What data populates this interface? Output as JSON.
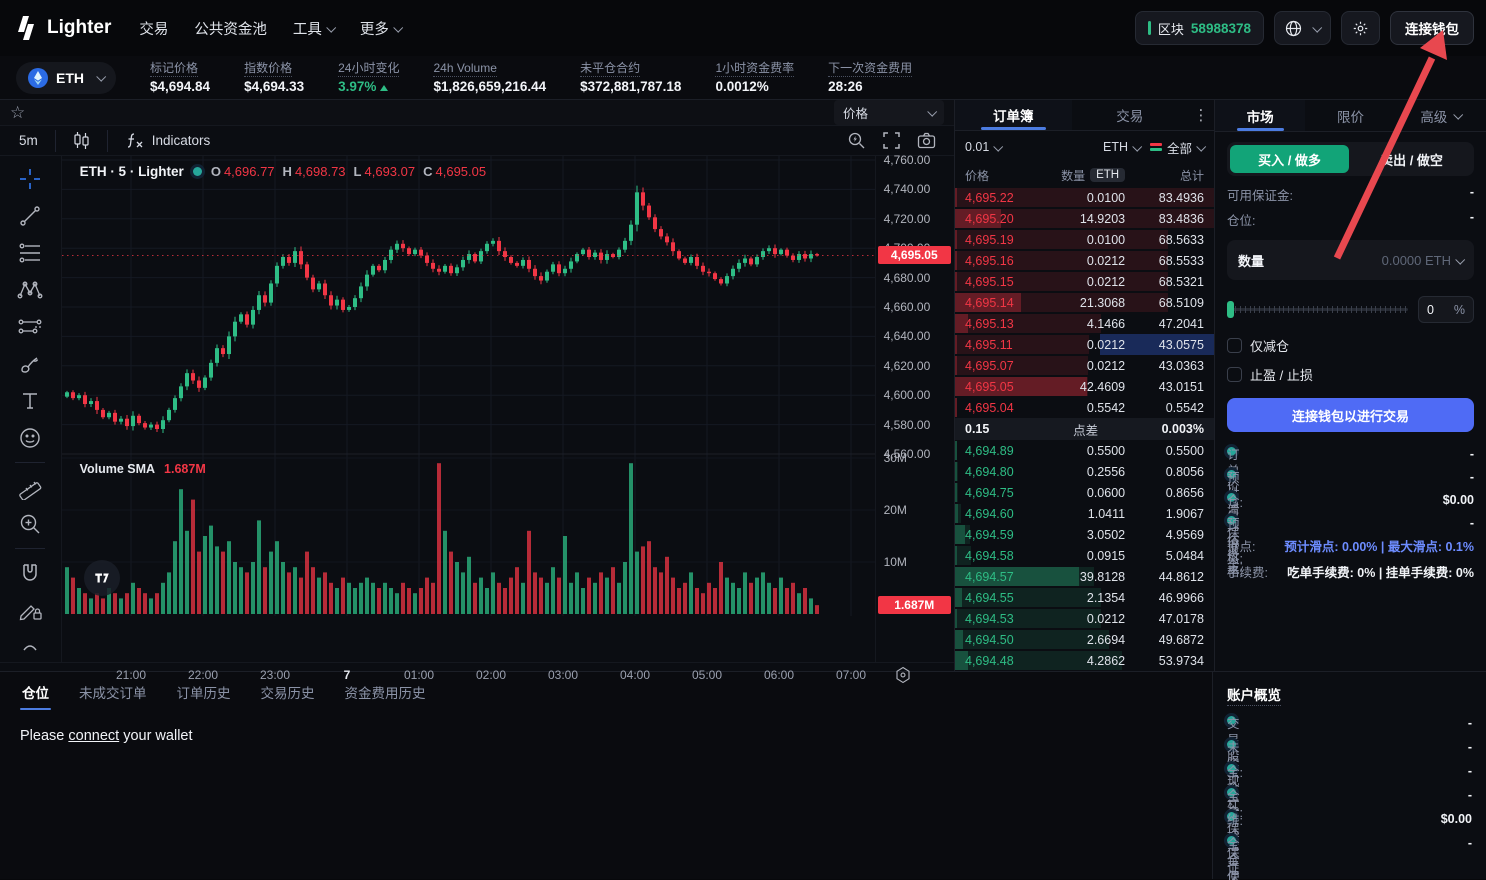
{
  "colors": {
    "red": "#f23645",
    "green": "#2ebd85",
    "blue": "#4c7ce0",
    "buy_green": "#12a478",
    "connect_blue": "#4f6bf5",
    "link_blue": "#6d8cff"
  },
  "nav": {
    "brand": "Lighter",
    "items": [
      {
        "label": "交易",
        "chevron": false
      },
      {
        "label": "公共资金池",
        "chevron": false
      },
      {
        "label": "工具",
        "chevron": true
      },
      {
        "label": "更多",
        "chevron": true
      }
    ],
    "block_label": "区块",
    "block_number": "58988378",
    "wallet_button": "连接钱包"
  },
  "market_stats": {
    "symbol": "ETH",
    "stats": [
      {
        "label": "标记价格",
        "value": "$4,694.84"
      },
      {
        "label": "指数价格",
        "value": "$4,694.33"
      },
      {
        "label": "24小时变化",
        "value": "3.97%",
        "tone": "up",
        "arrow": "▲"
      },
      {
        "label": "24h Volume",
        "value": "$1,826,659,216.44"
      },
      {
        "label": "未平仓合约",
        "value": "$372,881,787.18"
      },
      {
        "label": "1小时资金费率",
        "value": "0.0012%"
      },
      {
        "label": "下一次资金费用",
        "value": "28:26"
      }
    ]
  },
  "chart": {
    "interval": "5m",
    "indicators_label": "Indicators",
    "price_dropdown": "价格",
    "legend": {
      "symbol": "ETH · 5 · Lighter",
      "items": [
        {
          "k": "O",
          "v": "4,696.77"
        },
        {
          "k": "H",
          "v": "4,698.73"
        },
        {
          "k": "L",
          "v": "4,693.07"
        },
        {
          "k": "C",
          "v": "4,695.05"
        }
      ]
    },
    "volume_legend": {
      "label": "Volume SMA",
      "value": "1.687M"
    },
    "price_tag": "4,695.05",
    "price_line_value": 4695.05,
    "volume_tag": "1.687M",
    "y_ticks": [
      {
        "label": "4,760.00",
        "value": 4760
      },
      {
        "label": "4,740.00",
        "value": 4740
      },
      {
        "label": "4,720.00",
        "value": 4720
      },
      {
        "label": "4,700.00",
        "value": 4700
      },
      {
        "label": "4,680.00",
        "value": 4680
      },
      {
        "label": "4,660.00",
        "value": 4660
      },
      {
        "label": "4,640.00",
        "value": 4640
      },
      {
        "label": "4,620.00",
        "value": 4620
      },
      {
        "label": "4,600.00",
        "value": 4600
      },
      {
        "label": "4,580.00",
        "value": 4580
      },
      {
        "label": "4,560.00",
        "value": 4560
      }
    ],
    "volume_ticks": [
      {
        "label": "30M",
        "value": 30
      },
      {
        "label": "20M",
        "value": 20
      },
      {
        "label": "10M",
        "value": 10
      }
    ],
    "x_ticks": [
      "21:00",
      "22:00",
      "23:00",
      "7",
      "01:00",
      "02:00",
      "03:00",
      "04:00",
      "05:00",
      "06:00",
      "07:00"
    ],
    "x_day_tick": "7",
    "chart_data": {
      "type": "candlestick+volume",
      "closes": [
        4602,
        4598,
        4600,
        4594,
        4596,
        4590,
        4585,
        4588,
        4582,
        4584,
        4579,
        4586,
        4581,
        4578,
        4580,
        4577,
        4583,
        4590,
        4598,
        4606,
        4615,
        4610,
        4605,
        4612,
        4622,
        4632,
        4628,
        4640,
        4650,
        4655,
        4648,
        4658,
        4668,
        4663,
        4676,
        4688,
        4694,
        4690,
        4698,
        4689,
        4680,
        4672,
        4676,
        4668,
        4661,
        4665,
        4658,
        4660,
        4666,
        4674,
        4682,
        4688,
        4685,
        4692,
        4699,
        4703,
        4700,
        4696,
        4699,
        4695,
        4690,
        4686,
        4684,
        4688,
        4683,
        4687,
        4692,
        4696,
        4691,
        4698,
        4703,
        4705,
        4698,
        4694,
        4690,
        4688,
        4692,
        4686,
        4681,
        4678,
        4684,
        4689,
        4683,
        4686,
        4691,
        4696,
        4699,
        4694,
        4697,
        4692,
        4696,
        4694,
        4699,
        4705,
        4716,
        4738,
        4729,
        4721,
        4713,
        4708,
        4704,
        4698,
        4693,
        4690,
        4694,
        4688,
        4684,
        4683,
        4679,
        4676,
        4681,
        4686,
        4690,
        4693,
        4689,
        4694,
        4698,
        4700,
        4696,
        4699,
        4695,
        4692,
        4696,
        4693,
        4696,
        4695.05
      ],
      "volumes_m": [
        9,
        7,
        5,
        4,
        3,
        4,
        3,
        5,
        4,
        3,
        4,
        6,
        5,
        4,
        3,
        4,
        6,
        8,
        14,
        24,
        16,
        22,
        12,
        15,
        17,
        13,
        12,
        14,
        10,
        9,
        8,
        10,
        18,
        9,
        12,
        14,
        10,
        8,
        9,
        7,
        12,
        9,
        7,
        8,
        6,
        5,
        7,
        6,
        5,
        6,
        7,
        6,
        5,
        6,
        5,
        4,
        6,
        5,
        4,
        5,
        7,
        6,
        29,
        16,
        12,
        10,
        8,
        11,
        6,
        7,
        5,
        8,
        6,
        5,
        7,
        9,
        6,
        16,
        8,
        7,
        6,
        9,
        7,
        15,
        6,
        8,
        5,
        7,
        6,
        8,
        7,
        9,
        6,
        10,
        29,
        12,
        13,
        14,
        9,
        8,
        11,
        7,
        5,
        6,
        8,
        5,
        4,
        6,
        5,
        10,
        7,
        6,
        5,
        8,
        6,
        7,
        8,
        6,
        5,
        7,
        5,
        6,
        4,
        5,
        3,
        1.7
      ]
    }
  },
  "orderbook": {
    "tabs": [
      {
        "label": "订单簿",
        "active": true
      },
      {
        "label": "交易",
        "active": false
      }
    ],
    "tick_size": "0.01",
    "unit": "ETH",
    "filter": "全部",
    "columns": {
      "price": "价格",
      "size": "数量",
      "size_unit": "ETH",
      "total": "总计"
    },
    "max_total": 83.4936,
    "asks": [
      {
        "p": "4,695.22",
        "q": "0.0100",
        "t": "83.4936"
      },
      {
        "p": "4,695.20",
        "q": "14.9203",
        "t": "83.4836"
      },
      {
        "p": "4,695.19",
        "q": "0.0100",
        "t": "68.5633"
      },
      {
        "p": "4,695.16",
        "q": "0.0212",
        "t": "68.5533"
      },
      {
        "p": "4,695.15",
        "q": "0.0212",
        "t": "68.5321"
      },
      {
        "p": "4,695.14",
        "q": "21.3068",
        "t": "68.5109"
      },
      {
        "p": "4,695.13",
        "q": "4.1466",
        "t": "47.2041"
      },
      {
        "p": "4,695.11",
        "q": "0.0212",
        "t": "43.0575",
        "hl": true
      },
      {
        "p": "4,695.07",
        "q": "0.0212",
        "t": "43.0363"
      },
      {
        "p": "4,695.05",
        "q": "42.4609",
        "t": "43.0151"
      },
      {
        "p": "4,695.04",
        "q": "0.5542",
        "t": "0.5542"
      }
    ],
    "spread": {
      "value": "0.15",
      "label": "点差",
      "pct": "0.003%"
    },
    "bids": [
      {
        "p": "4,694.89",
        "q": "0.5500",
        "t": "0.5500"
      },
      {
        "p": "4,694.80",
        "q": "0.2556",
        "t": "0.8056"
      },
      {
        "p": "4,694.75",
        "q": "0.0600",
        "t": "0.8656"
      },
      {
        "p": "4,694.60",
        "q": "1.0411",
        "t": "1.9067"
      },
      {
        "p": "4,694.59",
        "q": "3.0502",
        "t": "4.9569"
      },
      {
        "p": "4,694.58",
        "q": "0.0915",
        "t": "5.0484"
      },
      {
        "p": "4,694.57",
        "q": "39.8128",
        "t": "44.8612"
      },
      {
        "p": "4,694.55",
        "q": "2.1354",
        "t": "46.9966"
      },
      {
        "p": "4,694.53",
        "q": "0.0212",
        "t": "47.0178"
      },
      {
        "p": "4,694.50",
        "q": "2.6694",
        "t": "49.6872"
      },
      {
        "p": "4,694.48",
        "q": "4.2862",
        "t": "53.9734"
      }
    ]
  },
  "trade_panel": {
    "tabs": [
      {
        "label": "市场",
        "active": true
      },
      {
        "label": "限价",
        "active": false
      },
      {
        "label": "高级",
        "active": false,
        "chevron": true
      }
    ],
    "buy_label": "买入 / 做多",
    "sell_label": "卖出 / 做空",
    "available_margin_label": "可用保证金:",
    "available_margin": "-",
    "position_label": "仓位:",
    "position": "-",
    "amount_label": "数量",
    "amount_placeholder": "0.0000 ETH",
    "slider_value": "0",
    "slider_unit": "%",
    "reduce_only": "仅减仓",
    "tpsl": "止盈 / 止损",
    "connect_button": "连接钱包以进行交易",
    "info_rows": [
      {
        "k": "订单价值:",
        "v": "-",
        "dotted": true
      },
      {
        "k": "预估清算价格:",
        "v": "-",
        "dotted": true
      },
      {
        "k": "仓位保证金:",
        "v": "$0.00",
        "dotted": true
      },
      {
        "k": "预估价格:",
        "v": "-",
        "dotted": true
      }
    ],
    "slippage": {
      "k": "滑点:",
      "v": "预计滑点: 0.00% | 最大滑点: 0.1%"
    },
    "fees": {
      "k": "手续费:",
      "v": "吃单手续费: 0% | 挂单手续费: 0%"
    }
  },
  "bottom": {
    "tabs": [
      {
        "label": "仓位",
        "active": true
      },
      {
        "label": "未成交订单",
        "active": false
      },
      {
        "label": "订单历史",
        "active": false
      },
      {
        "label": "交易历史",
        "active": false
      },
      {
        "label": "资金费用历史",
        "active": false
      }
    ],
    "message": {
      "pre": "Please ",
      "link": "connect",
      "post": " your wallet"
    }
  },
  "account": {
    "title": "账户概览",
    "rows": [
      {
        "k": "交易股权:",
        "v": "-"
      },
      {
        "k": "未实现盈亏:",
        "v": "-"
      },
      {
        "k": "全仓杠杆:",
        "v": "-"
      },
      {
        "k": "全仓保证金使用:",
        "v": "-"
      },
      {
        "k": "维持保证金:",
        "v": "$0.00"
      },
      {
        "k": "全仓保证金比率:",
        "v": "-"
      }
    ]
  }
}
